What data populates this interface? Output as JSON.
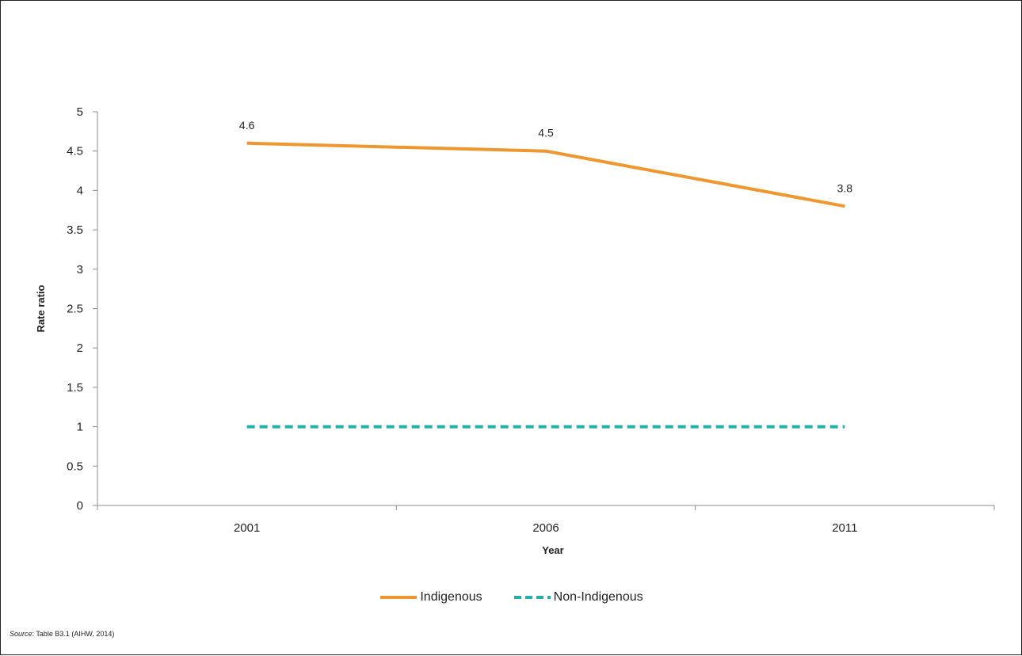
{
  "chart_data": {
    "type": "line",
    "categories": [
      "2001",
      "2006",
      "2011"
    ],
    "series": [
      {
        "name": "Indigenous",
        "values": [
          4.6,
          4.5,
          3.8
        ],
        "color": "#f0962f",
        "style": "solid",
        "data_labels": [
          "4.6",
          "4.5",
          "3.8"
        ]
      },
      {
        "name": "Non-Indigenous",
        "values": [
          1,
          1,
          1
        ],
        "color": "#20b2aa",
        "style": "dashed"
      }
    ],
    "ylim": [
      0,
      5
    ],
    "yticks": [
      "0",
      "0.5",
      "1",
      "1.5",
      "2",
      "2.5",
      "3",
      "3.5",
      "4",
      "4.5",
      "5"
    ],
    "xlabel": "Year",
    "ylabel": "Rate ratio",
    "grid": false,
    "legend_position": "bottom"
  },
  "source": {
    "label": "Source",
    "text": ": Table B3.1 (AIHW, 2014)"
  }
}
